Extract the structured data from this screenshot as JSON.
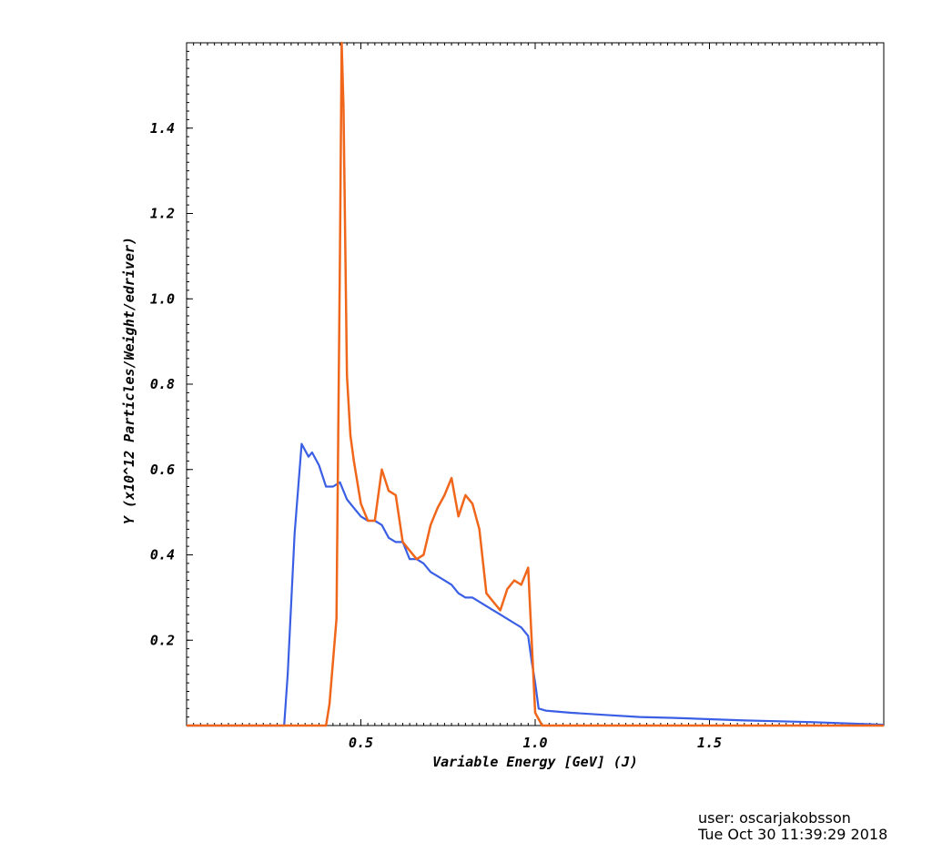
{
  "chart_data": {
    "type": "line",
    "xlabel": "Variable Energy [GeV] (J)",
    "ylabel": "Y (x10^12 Particles/Weight/edriver)",
    "xlim": [
      0.0,
      2.0
    ],
    "ylim": [
      0.0,
      1.6
    ],
    "xticks": [
      0.5,
      1.0,
      1.5
    ],
    "xtick_labels": [
      "0.5",
      "1.0",
      "1.5"
    ],
    "yticks": [
      0.2,
      0.4,
      0.6,
      0.8,
      1.0,
      1.2,
      1.4
    ],
    "ytick_labels": [
      "0.2",
      "0.4",
      "0.6",
      "0.8",
      "1.0",
      "1.2",
      "1.4"
    ],
    "grid": false,
    "series": [
      {
        "color": "#3a5fe5",
        "x": [
          0.0,
          0.28,
          0.29,
          0.31,
          0.33,
          0.35,
          0.36,
          0.38,
          0.4,
          0.42,
          0.44,
          0.46,
          0.48,
          0.5,
          0.52,
          0.54,
          0.56,
          0.58,
          0.6,
          0.62,
          0.64,
          0.66,
          0.68,
          0.7,
          0.72,
          0.74,
          0.76,
          0.78,
          0.8,
          0.82,
          0.84,
          0.86,
          0.88,
          0.9,
          0.92,
          0.94,
          0.96,
          0.98,
          0.99,
          1.0,
          1.01,
          1.03,
          1.1,
          1.2,
          1.3,
          1.4,
          1.5,
          1.6,
          1.7,
          1.8,
          1.9,
          2.0
        ],
        "y": [
          0.0,
          0.0,
          0.12,
          0.45,
          0.66,
          0.63,
          0.64,
          0.61,
          0.56,
          0.56,
          0.57,
          0.53,
          0.51,
          0.49,
          0.48,
          0.48,
          0.47,
          0.44,
          0.43,
          0.43,
          0.39,
          0.39,
          0.38,
          0.36,
          0.35,
          0.34,
          0.33,
          0.31,
          0.3,
          0.3,
          0.29,
          0.28,
          0.27,
          0.26,
          0.25,
          0.24,
          0.23,
          0.21,
          0.15,
          0.1,
          0.04,
          0.035,
          0.03,
          0.025,
          0.02,
          0.018,
          0.015,
          0.012,
          0.01,
          0.008,
          0.005,
          0.002
        ]
      },
      {
        "color": "#f0661a",
        "x": [
          0.0,
          0.4,
          0.41,
          0.43,
          0.44,
          0.445,
          0.45,
          0.46,
          0.47,
          0.48,
          0.5,
          0.52,
          0.54,
          0.56,
          0.58,
          0.6,
          0.62,
          0.64,
          0.66,
          0.68,
          0.7,
          0.72,
          0.74,
          0.76,
          0.78,
          0.8,
          0.82,
          0.84,
          0.86,
          0.88,
          0.9,
          0.92,
          0.94,
          0.96,
          0.98,
          1.0,
          1.02,
          1.04,
          2.0
        ],
        "y": [
          0.0,
          0.0,
          0.05,
          0.25,
          1.1,
          1.6,
          1.45,
          0.82,
          0.68,
          0.62,
          0.52,
          0.48,
          0.48,
          0.6,
          0.55,
          0.54,
          0.43,
          0.41,
          0.39,
          0.4,
          0.47,
          0.51,
          0.54,
          0.58,
          0.49,
          0.54,
          0.52,
          0.46,
          0.31,
          0.29,
          0.27,
          0.32,
          0.34,
          0.33,
          0.37,
          0.03,
          0.0,
          0.0,
          0.0
        ]
      }
    ]
  },
  "footer": {
    "user": "user: oscarjakobsson",
    "date": "Tue Oct 30 11:39:29 2018"
  }
}
